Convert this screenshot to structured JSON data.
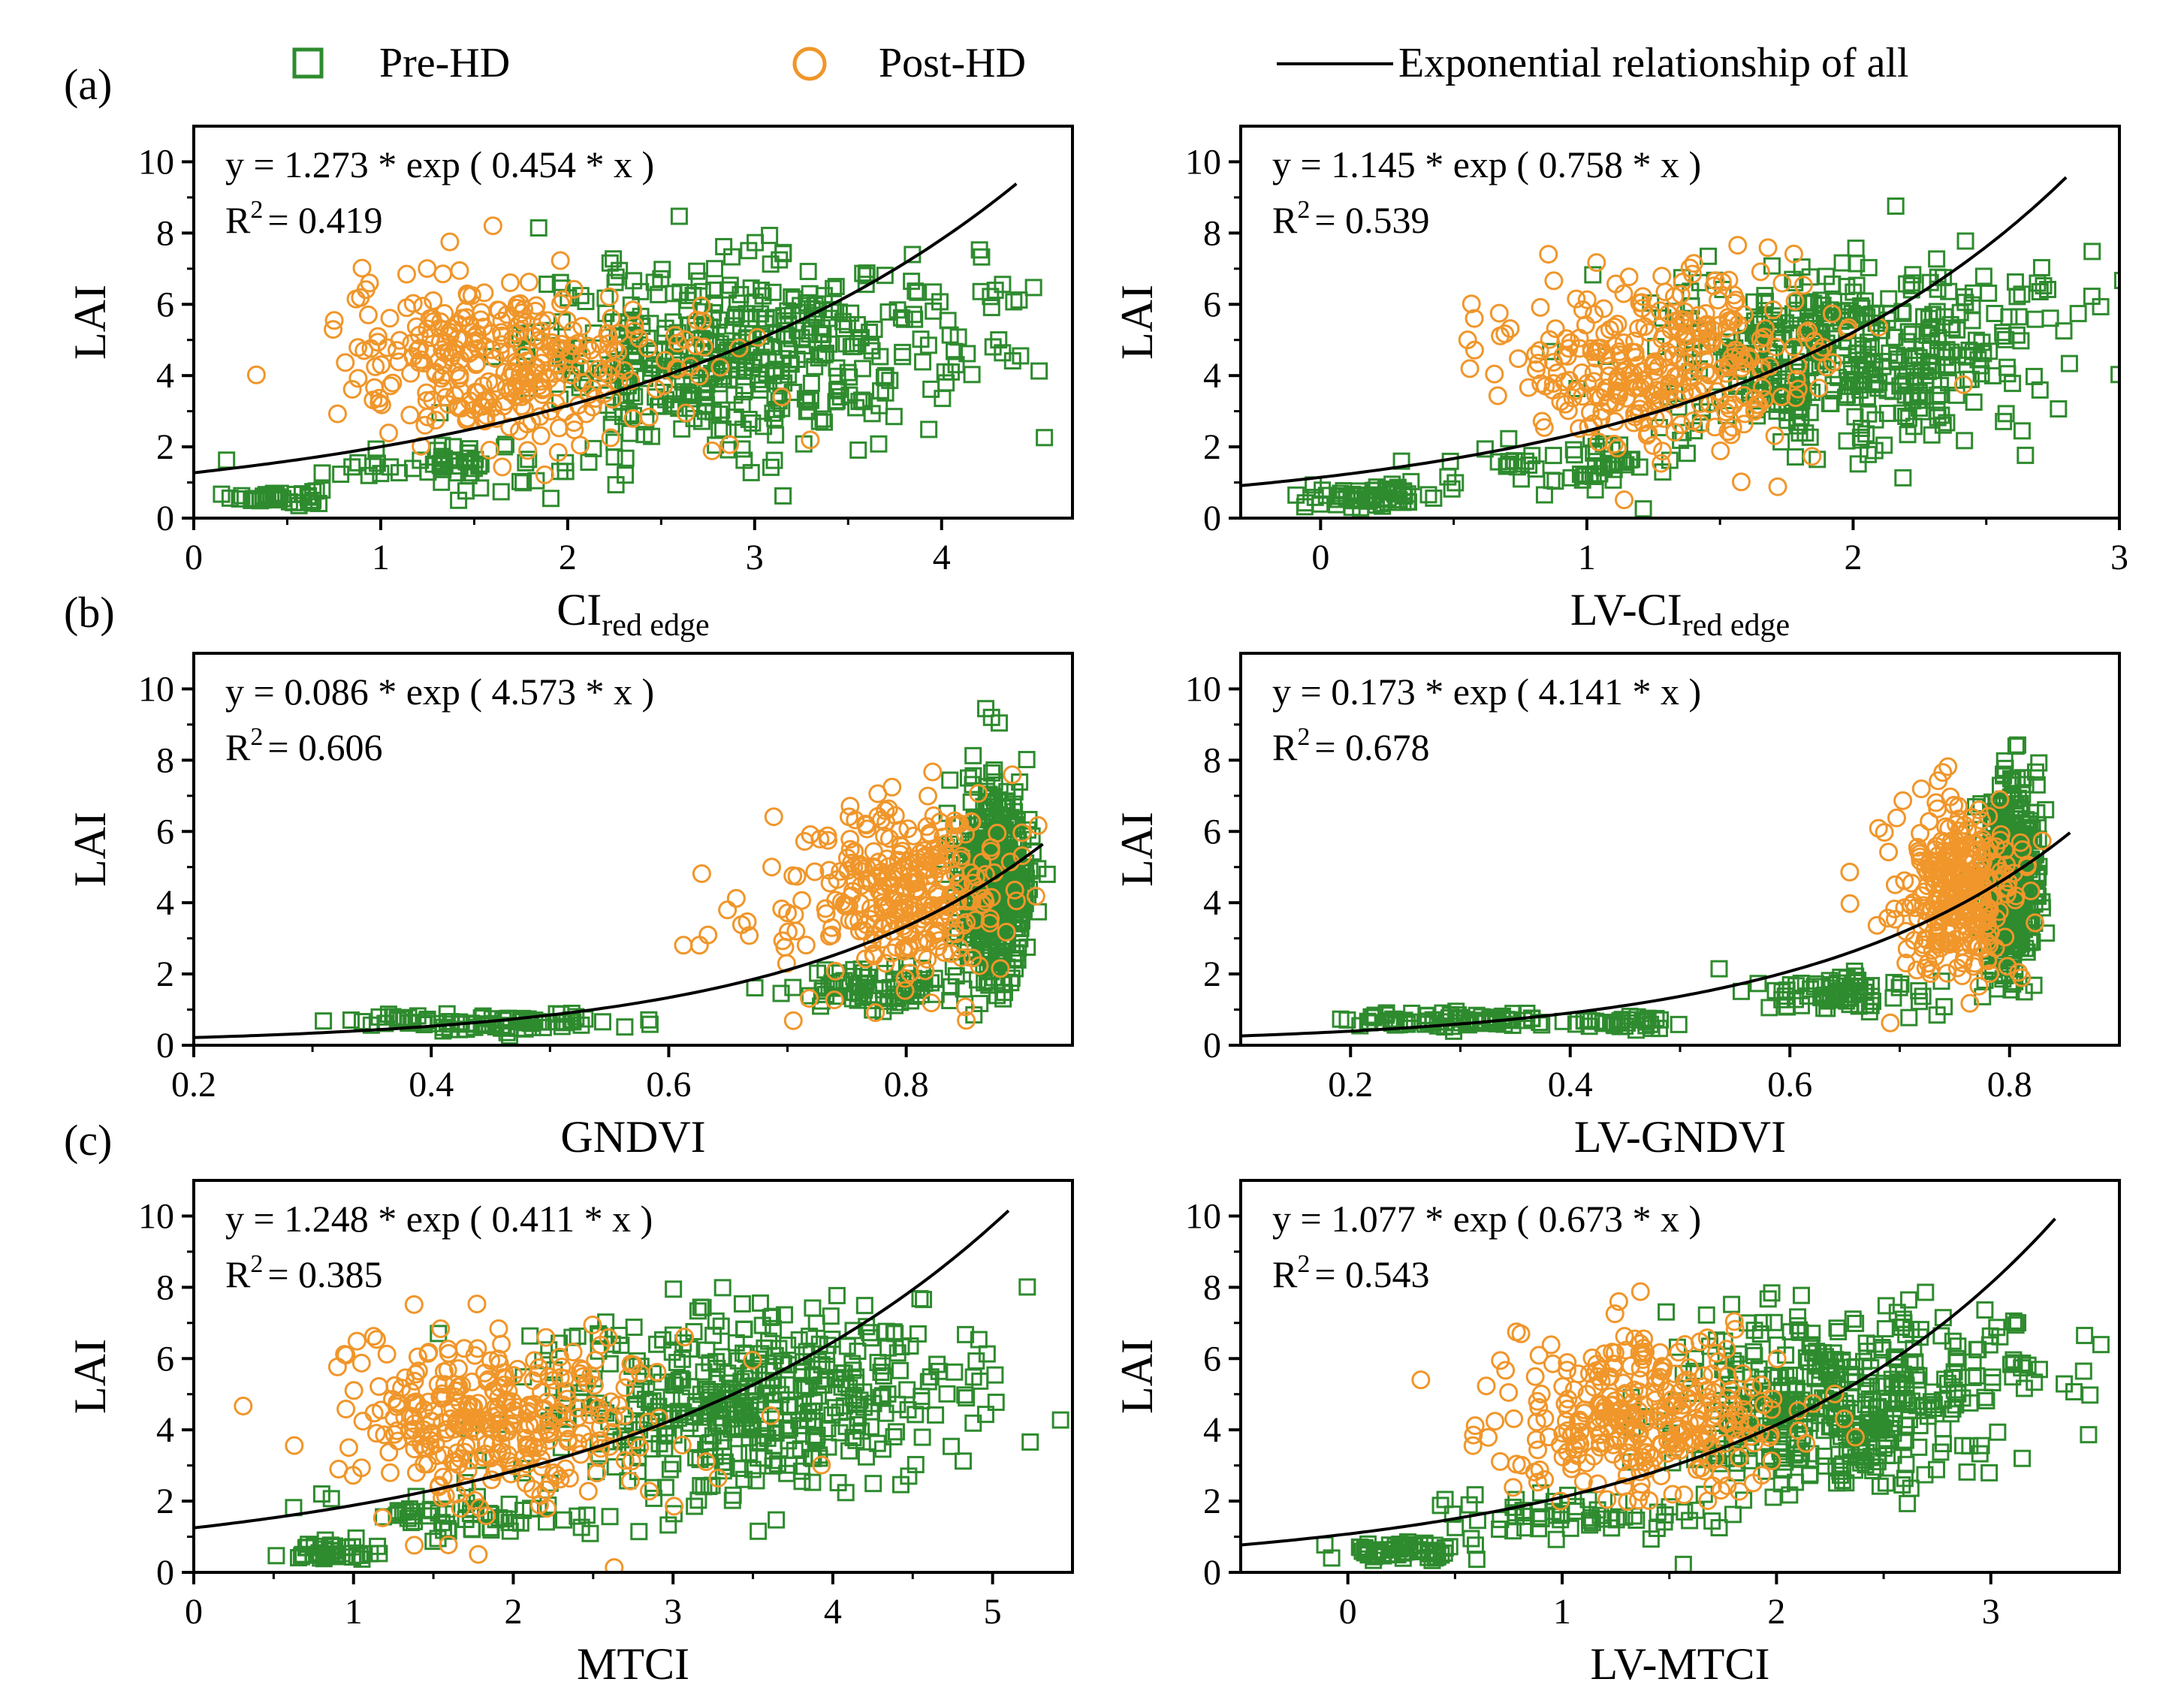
{
  "figure": {
    "legend": {
      "pre": {
        "label": "Pre-HD",
        "color": "#2e8b2e"
      },
      "post": {
        "label": "Post-HD",
        "color": "#f0962a"
      },
      "fit": {
        "label": "Exponential relationship of all",
        "color": "#000000"
      }
    },
    "row_labels": [
      "(a)",
      "(b)",
      "(c)"
    ]
  },
  "chart_data": [
    {
      "id": "a-left",
      "type": "scatter",
      "row": 0,
      "col": 0,
      "xlabel_main": "CI",
      "xlabel_sub": "red edge",
      "ylabel": "LAI",
      "xlim": [
        0,
        4.7
      ],
      "ylim": [
        0,
        11
      ],
      "xticks": [
        "0",
        "1",
        "2",
        "3",
        "4"
      ],
      "yticks": [
        "0",
        "2",
        "4",
        "6",
        "8",
        "10"
      ],
      "xtick_values": [
        0,
        1,
        2,
        3,
        4
      ],
      "ytick_values": [
        0,
        2,
        4,
        6,
        8,
        10
      ],
      "equation": "y = 1.273 * exp ( 0.454 * x )",
      "r2_label": "R",
      "r2_value": "= 0.419",
      "fit": {
        "a": 1.273,
        "b": 0.454,
        "x0": 0,
        "x1": 4.4
      },
      "clusters": [
        {
          "series": "pre",
          "n": 40,
          "cx": 0.45,
          "cy": 0.6,
          "sx": 0.12,
          "sy": 0.12
        },
        {
          "series": "pre",
          "n": 60,
          "cx": 1.4,
          "cy": 1.5,
          "sx": 0.35,
          "sy": 0.35
        },
        {
          "series": "pre",
          "n": 420,
          "cx": 2.9,
          "cy": 4.6,
          "sx": 0.55,
          "sy": 1.3
        },
        {
          "series": "pre",
          "n": 25,
          "cx": 4.1,
          "cy": 5.8,
          "sx": 0.35,
          "sy": 1.0
        },
        {
          "series": "post",
          "n": 280,
          "cx": 1.6,
          "cy": 4.4,
          "sx": 0.4,
          "sy": 1.2
        },
        {
          "series": "post",
          "n": 40,
          "cx": 2.4,
          "cy": 4.2,
          "sx": 0.4,
          "sy": 1.0
        }
      ]
    },
    {
      "id": "a-right",
      "type": "scatter",
      "row": 0,
      "col": 1,
      "xlabel_main": "LV-CI",
      "xlabel_sub": "red edge",
      "ylabel": "LAI",
      "xlim": [
        -0.3,
        3
      ],
      "ylim": [
        0,
        11
      ],
      "xticks": [
        "0",
        "1",
        "2",
        "3"
      ],
      "yticks": [
        "0",
        "2",
        "4",
        "6",
        "8",
        "10"
      ],
      "xtick_values": [
        0,
        1,
        2,
        3
      ],
      "ytick_values": [
        0,
        2,
        4,
        6,
        8,
        10
      ],
      "equation": "y = 1.145 * exp ( 0.758 * x )",
      "r2_label": "R",
      "r2_value": "= 0.539",
      "fit": {
        "a": 1.145,
        "b": 0.758,
        "x0": -0.3,
        "x1": 2.8
      },
      "clusters": [
        {
          "series": "pre",
          "n": 60,
          "cx": 0.2,
          "cy": 0.6,
          "sx": 0.12,
          "sy": 0.15
        },
        {
          "series": "pre",
          "n": 60,
          "cx": 0.9,
          "cy": 1.5,
          "sx": 0.25,
          "sy": 0.35
        },
        {
          "series": "pre",
          "n": 420,
          "cx": 1.95,
          "cy": 4.5,
          "sx": 0.35,
          "sy": 1.3
        },
        {
          "series": "pre",
          "n": 20,
          "cx": 2.7,
          "cy": 6.0,
          "sx": 0.2,
          "sy": 0.8
        },
        {
          "series": "post",
          "n": 320,
          "cx": 1.3,
          "cy": 4.4,
          "sx": 0.3,
          "sy": 1.2
        }
      ]
    },
    {
      "id": "b-left",
      "type": "scatter",
      "row": 1,
      "col": 0,
      "xlabel_main": "GNDVI",
      "xlabel_sub": "",
      "ylabel": "LAI",
      "xlim": [
        0.2,
        0.94
      ],
      "ylim": [
        0,
        11
      ],
      "xticks": [
        "0.2",
        "0.4",
        "0.6",
        "0.8"
      ],
      "yticks": [
        "0",
        "2",
        "4",
        "6",
        "8",
        "10"
      ],
      "xtick_values": [
        0.2,
        0.4,
        0.6,
        0.8
      ],
      "ytick_values": [
        0,
        2,
        4,
        6,
        8,
        10
      ],
      "equation": "y = 0.086 * exp ( 4.573 * x )",
      "r2_label": "R",
      "r2_value": "= 0.606",
      "fit": {
        "a": 0.086,
        "b": 4.573,
        "x0": 0.2,
        "x1": 0.915
      },
      "clusters": [
        {
          "series": "pre",
          "n": 90,
          "cx": 0.45,
          "cy": 0.65,
          "sx": 0.06,
          "sy": 0.12
        },
        {
          "series": "pre",
          "n": 80,
          "cx": 0.78,
          "cy": 1.6,
          "sx": 0.04,
          "sy": 0.3
        },
        {
          "series": "pre",
          "n": 420,
          "cx": 0.875,
          "cy": 4.6,
          "sx": 0.015,
          "sy": 1.4
        },
        {
          "series": "post",
          "n": 300,
          "cx": 0.8,
          "cy": 4.3,
          "sx": 0.04,
          "sy": 1.2
        },
        {
          "series": "post",
          "n": 20,
          "cx": 0.68,
          "cy": 3.2,
          "sx": 0.04,
          "sy": 1.0
        }
      ]
    },
    {
      "id": "b-right",
      "type": "scatter",
      "row": 1,
      "col": 1,
      "xlabel_main": "LV-GNDVI",
      "xlabel_sub": "",
      "ylabel": "LAI",
      "xlim": [
        0.1,
        0.9
      ],
      "ylim": [
        0,
        11
      ],
      "xticks": [
        "0.2",
        "0.4",
        "0.6",
        "0.8"
      ],
      "yticks": [
        "0",
        "2",
        "4",
        "6",
        "8",
        "10"
      ],
      "xtick_values": [
        0.2,
        0.4,
        0.6,
        0.8
      ],
      "ytick_values": [
        0,
        2,
        4,
        6,
        8,
        10
      ],
      "equation": "y = 0.173 * exp ( 4.141 * x )",
      "r2_label": "R",
      "r2_value": "= 0.678",
      "fit": {
        "a": 0.173,
        "b": 4.141,
        "x0": 0.1,
        "x1": 0.855
      },
      "clusters": [
        {
          "series": "pre",
          "n": 80,
          "cx": 0.3,
          "cy": 0.7,
          "sx": 0.05,
          "sy": 0.12
        },
        {
          "series": "pre",
          "n": 30,
          "cx": 0.45,
          "cy": 0.6,
          "sx": 0.03,
          "sy": 0.12
        },
        {
          "series": "pre",
          "n": 80,
          "cx": 0.65,
          "cy": 1.5,
          "sx": 0.04,
          "sy": 0.3
        },
        {
          "series": "pre",
          "n": 420,
          "cx": 0.8,
          "cy": 4.7,
          "sx": 0.013,
          "sy": 1.4
        },
        {
          "series": "post",
          "n": 320,
          "cx": 0.75,
          "cy": 4.4,
          "sx": 0.03,
          "sy": 1.2
        }
      ]
    },
    {
      "id": "c-left",
      "type": "scatter",
      "row": 2,
      "col": 0,
      "xlabel_main": "MTCI",
      "xlabel_sub": "",
      "ylabel": "LAI",
      "xlim": [
        0,
        5.5
      ],
      "ylim": [
        0,
        11
      ],
      "xticks": [
        "0",
        "1",
        "2",
        "3",
        "4",
        "5"
      ],
      "yticks": [
        "0",
        "2",
        "4",
        "6",
        "8",
        "10"
      ],
      "xtick_values": [
        0,
        1,
        2,
        3,
        4,
        5
      ],
      "ytick_values": [
        0,
        2,
        4,
        6,
        8,
        10
      ],
      "equation": "y = 1.248 * exp ( 0.411 * x )",
      "r2_label": "R",
      "r2_value": "= 0.385",
      "fit": {
        "a": 1.248,
        "b": 0.411,
        "x0": 0,
        "x1": 5.1
      },
      "clusters": [
        {
          "series": "pre",
          "n": 40,
          "cx": 0.85,
          "cy": 0.6,
          "sx": 0.15,
          "sy": 0.15
        },
        {
          "series": "pre",
          "n": 60,
          "cx": 1.7,
          "cy": 1.5,
          "sx": 0.4,
          "sy": 0.3
        },
        {
          "series": "pre",
          "n": 420,
          "cx": 3.4,
          "cy": 4.8,
          "sx": 0.6,
          "sy": 1.3
        },
        {
          "series": "pre",
          "n": 25,
          "cx": 4.7,
          "cy": 6.0,
          "sx": 0.35,
          "sy": 0.9
        },
        {
          "series": "post",
          "n": 300,
          "cx": 1.8,
          "cy": 4.4,
          "sx": 0.45,
          "sy": 1.2
        },
        {
          "series": "post",
          "n": 30,
          "cx": 2.7,
          "cy": 4.0,
          "sx": 0.5,
          "sy": 1.2
        }
      ]
    },
    {
      "id": "c-right",
      "type": "scatter",
      "row": 2,
      "col": 1,
      "xlabel_main": "LV-MTCI",
      "xlabel_sub": "",
      "ylabel": "LAI",
      "xlim": [
        -0.5,
        3.6
      ],
      "ylim": [
        0,
        11
      ],
      "xticks": [
        "0",
        "1",
        "2",
        "3"
      ],
      "yticks": [
        "0",
        "2",
        "4",
        "6",
        "8",
        "10"
      ],
      "xtick_values": [
        0,
        1,
        2,
        3
      ],
      "ytick_values": [
        0,
        2,
        4,
        6,
        8,
        10
      ],
      "equation": "y = 1.077 * exp ( 0.673 * x )",
      "r2_label": "R",
      "r2_value": "= 0.543",
      "fit": {
        "a": 1.077,
        "b": 0.673,
        "x0": -0.5,
        "x1": 3.3
      },
      "clusters": [
        {
          "series": "pre",
          "n": 60,
          "cx": 0.25,
          "cy": 0.6,
          "sx": 0.15,
          "sy": 0.15
        },
        {
          "series": "pre",
          "n": 60,
          "cx": 1.1,
          "cy": 1.6,
          "sx": 0.3,
          "sy": 0.35
        },
        {
          "series": "pre",
          "n": 420,
          "cx": 2.25,
          "cy": 4.6,
          "sx": 0.38,
          "sy": 1.3
        },
        {
          "series": "pre",
          "n": 20,
          "cx": 3.2,
          "cy": 6.0,
          "sx": 0.2,
          "sy": 0.8
        },
        {
          "series": "post",
          "n": 320,
          "cx": 1.4,
          "cy": 4.4,
          "sx": 0.35,
          "sy": 1.2
        }
      ]
    }
  ]
}
